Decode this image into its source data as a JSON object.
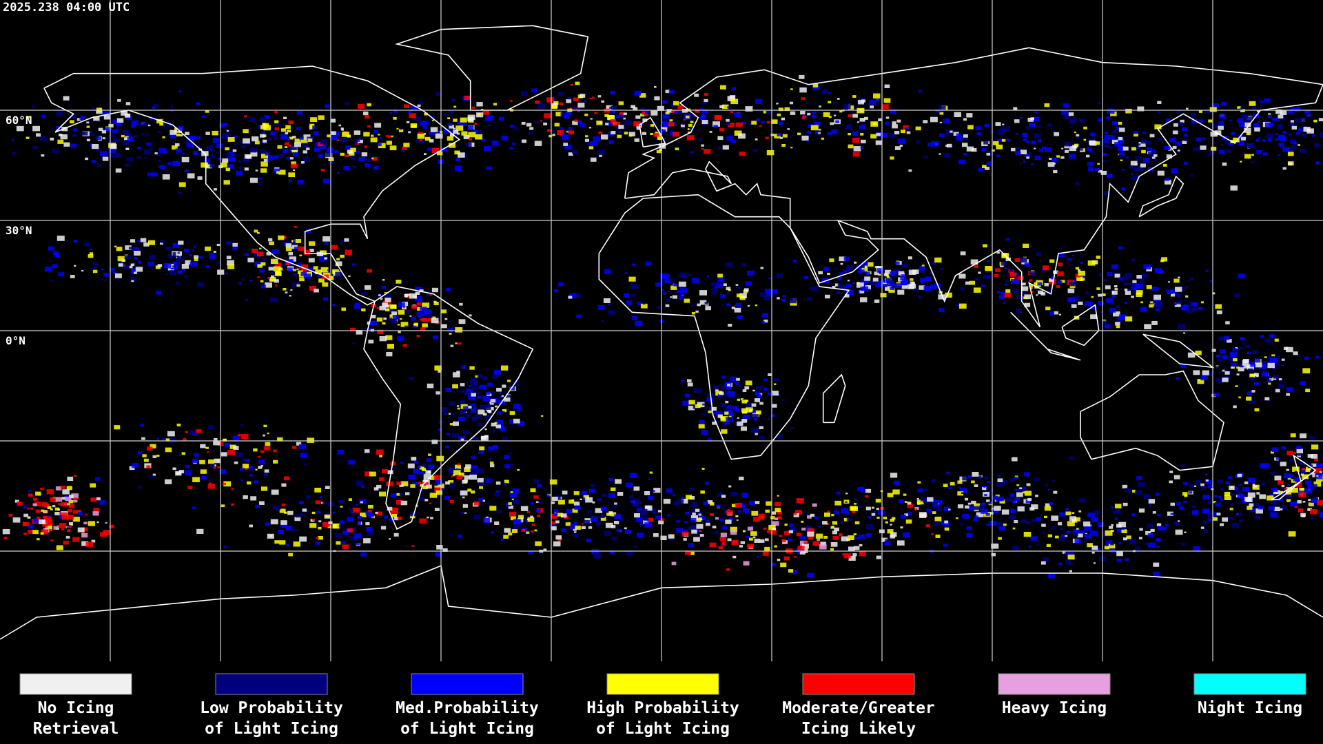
{
  "header": {
    "timestamp": "2025.238 04:00 UTC"
  },
  "map": {
    "lat_labels": [
      "60°N",
      "30°N",
      "0°N"
    ]
  },
  "legend": {
    "items": [
      {
        "label": [
          "No Icing",
          "Retrieval"
        ],
        "color": "#f0f0f0"
      },
      {
        "label": [
          "Low Probability",
          "of Light Icing"
        ],
        "color": "#00007f"
      },
      {
        "label": [
          "Med.Probability",
          "of Light Icing"
        ],
        "color": "#0000ff"
      },
      {
        "label": [
          "High Probability",
          "of Light Icing"
        ],
        "color": "#ffff00"
      },
      {
        "label": [
          "Moderate/Greater",
          "Icing Likely"
        ],
        "color": "#ff0000"
      },
      {
        "label": [
          "Heavy Icing"
        ],
        "color": "#e6a0e0"
      },
      {
        "label": [
          "Night Icing"
        ],
        "color": "#00ffff"
      }
    ]
  }
}
